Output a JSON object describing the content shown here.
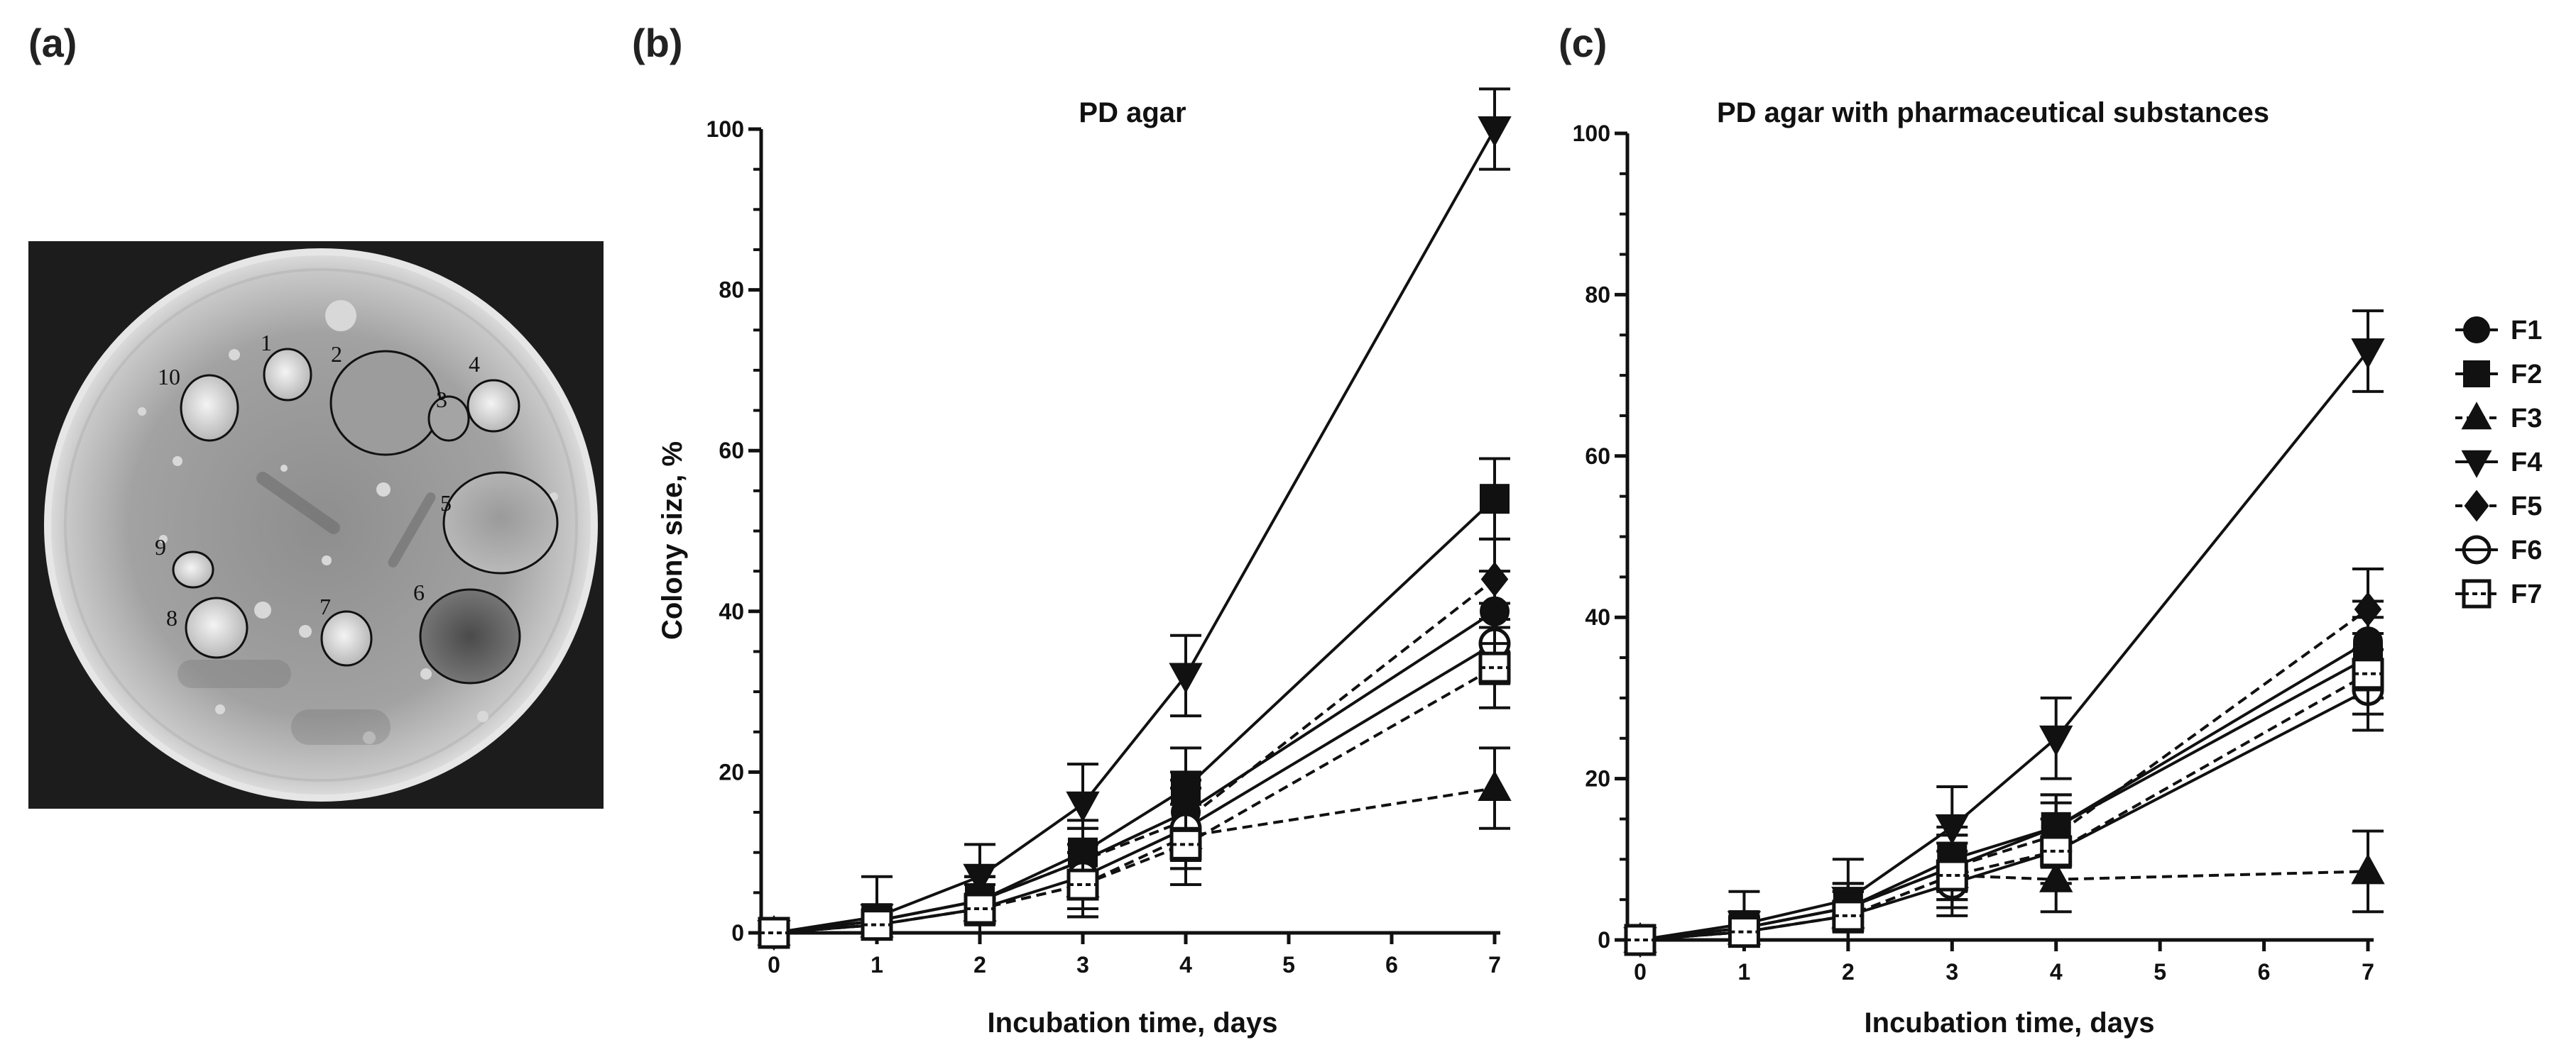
{
  "panels": {
    "a": "(a)",
    "b": "(b)",
    "c": "(c)"
  },
  "photo": {
    "colony_numbers": [
      "1",
      "2",
      "3",
      "4",
      "5",
      "6",
      "7",
      "8",
      "9",
      "10"
    ]
  },
  "legend": [
    {
      "name": "F1",
      "marker": "circle-filled",
      "dash": "solid"
    },
    {
      "name": "F2",
      "marker": "square-filled",
      "dash": "solid"
    },
    {
      "name": "F3",
      "marker": "triangle-up-filled",
      "dash": "dashed"
    },
    {
      "name": "F4",
      "marker": "triangle-down-filled",
      "dash": "solid"
    },
    {
      "name": "F5",
      "marker": "diamond-filled",
      "dash": "dashed"
    },
    {
      "name": "F6",
      "marker": "circle-open",
      "dash": "solid"
    },
    {
      "name": "F7",
      "marker": "square-open",
      "dash": "dashed"
    }
  ],
  "chart_data": [
    {
      "type": "line",
      "title": "PD agar",
      "xlabel": "Incubation time, days",
      "ylabel": "Colony size, %",
      "xlim": [
        0,
        7
      ],
      "ylim": [
        0,
        100
      ],
      "xticks": [
        0,
        1,
        2,
        3,
        4,
        5,
        6,
        7
      ],
      "yticks": [
        0,
        20,
        40,
        60,
        80,
        100
      ],
      "x": [
        0,
        1,
        2,
        3,
        4,
        7
      ],
      "series": [
        {
          "name": "F1",
          "values": [
            0,
            1.5,
            4,
            9,
            15,
            40
          ],
          "errors": [
            0,
            2,
            3,
            4,
            5,
            5
          ]
        },
        {
          "name": "F2",
          "values": [
            0,
            1.5,
            4,
            10,
            18,
            54
          ],
          "errors": [
            0,
            2,
            3,
            4,
            5,
            5
          ]
        },
        {
          "name": "F3",
          "values": [
            0,
            1,
            3,
            6,
            12,
            18
          ],
          "errors": [
            0,
            2,
            3,
            4,
            4,
            5
          ]
        },
        {
          "name": "F4",
          "values": [
            0,
            2,
            7,
            16,
            32,
            100
          ],
          "errors": [
            0,
            5,
            4,
            5,
            5,
            5
          ]
        },
        {
          "name": "F5",
          "values": [
            0,
            1.5,
            4,
            9,
            14,
            44
          ],
          "errors": [
            0,
            2,
            3,
            4,
            5,
            5
          ]
        },
        {
          "name": "F6",
          "values": [
            0,
            1,
            3,
            7,
            13,
            36
          ],
          "errors": [
            0,
            2,
            3,
            4,
            5,
            5
          ]
        },
        {
          "name": "F7",
          "values": [
            0,
            1,
            3,
            6,
            11,
            33
          ],
          "errors": [
            0,
            2,
            3,
            4,
            5,
            5
          ]
        }
      ]
    },
    {
      "type": "line",
      "title": "PD agar with pharmaceutical substances",
      "xlabel": "Incubation time, days",
      "ylabel": "",
      "xlim": [
        0,
        7
      ],
      "ylim": [
        0,
        100
      ],
      "xticks": [
        0,
        1,
        2,
        3,
        4,
        5,
        6,
        7
      ],
      "yticks": [
        0,
        20,
        40,
        60,
        80,
        100
      ],
      "x": [
        0,
        1,
        2,
        3,
        4,
        7
      ],
      "series": [
        {
          "name": "F1",
          "values": [
            0,
            1.5,
            4,
            9,
            14,
            37
          ],
          "errors": [
            0,
            2,
            3,
            4,
            4,
            5
          ]
        },
        {
          "name": "F2",
          "values": [
            0,
            1.5,
            4,
            10,
            14,
            35
          ],
          "errors": [
            0,
            2,
            3,
            4,
            4,
            5
          ]
        },
        {
          "name": "F3",
          "values": [
            0,
            1,
            3,
            8,
            7.5,
            8.5
          ],
          "errors": [
            0,
            2,
            3,
            4,
            4,
            5
          ]
        },
        {
          "name": "F4",
          "values": [
            0,
            2,
            5,
            14,
            25,
            73
          ],
          "errors": [
            0,
            4,
            5,
            5,
            5,
            5
          ]
        },
        {
          "name": "F5",
          "values": [
            0,
            1.5,
            4,
            9,
            13,
            41
          ],
          "errors": [
            0,
            2,
            3,
            4,
            4,
            5
          ]
        },
        {
          "name": "F6",
          "values": [
            0,
            1,
            3,
            7,
            11,
            31
          ],
          "errors": [
            0,
            2,
            3,
            4,
            4,
            5
          ]
        },
        {
          "name": "F7",
          "values": [
            0,
            1,
            3,
            8,
            11,
            33
          ],
          "errors": [
            0,
            2,
            3,
            4,
            4,
            5
          ]
        }
      ]
    }
  ]
}
